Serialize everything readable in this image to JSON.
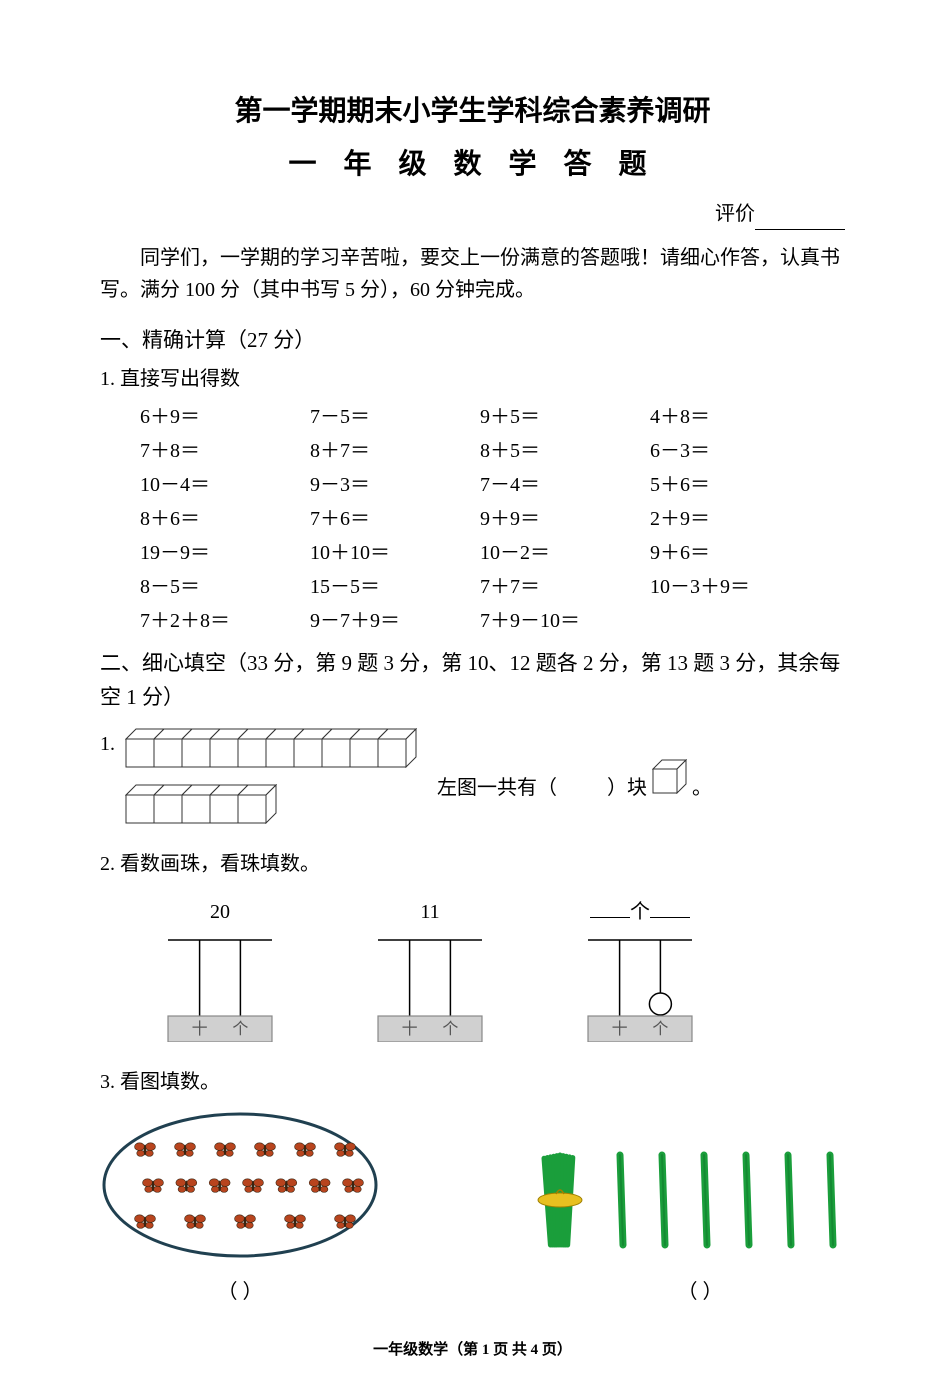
{
  "title_main": "第一学期期末小学生学科综合素养调研",
  "title_sub": "一 年 级 数 学 答 题",
  "eval_label": "评价",
  "intro": "同学们，一学期的学习辛苦啦，要交上一份满意的答题哦！请细心作答，认真书写。满分 100 分（其中书写 5 分），60 分钟完成。",
  "section1_head": "一、精确计算（27 分）",
  "section1_sub": "1.  直接写出得数",
  "calc_rows": [
    [
      "6＋9＝",
      "7－5＝",
      "9＋5＝",
      "4＋8＝"
    ],
    [
      "7＋8＝",
      "8＋7＝",
      "8＋5＝",
      "6－3＝"
    ],
    [
      "10－4＝",
      "9－3＝",
      "7－4＝",
      "5＋6＝"
    ],
    [
      "8＋6＝",
      "7＋6＝",
      "9＋9＝",
      "2＋9＝"
    ],
    [
      "19－9＝",
      "10＋10＝",
      "10－2＝",
      "9＋6＝"
    ],
    [
      "8－5＝",
      "15－5＝",
      "7＋7＝",
      "10－3＋9＝"
    ],
    [
      "7＋2＋8＝",
      "9－7＋9＝",
      "7＋9－10＝",
      ""
    ]
  ],
  "section2_head": "二、细心填空（33 分，第 9 题 3 分，第 10、12 题各 2 分，第 13 题 3 分，其余每空 1 分）",
  "q1_num": "1.",
  "q1_text_prefix": "左图一共有（",
  "q1_text_suffix": "）块",
  "q1_text_end": "。",
  "q1_top_cubes": 10,
  "q1_bottom_cubes": 5,
  "q2_num": "2.",
  "q2_text": "看数画珠，看珠填数。",
  "abacus": [
    {
      "label": "20",
      "rods": [
        "十",
        "个"
      ],
      "bead_on": null
    },
    {
      "label": "11",
      "rods": [
        "十",
        "个"
      ],
      "bead_on": null
    },
    {
      "label_prefix": "",
      "label_mid": "个",
      "label_blank": true,
      "rods": [
        "十",
        "个"
      ],
      "bead_on": 1
    }
  ],
  "q3_num": "3.",
  "q3_text": "看图填数。",
  "q3_left_paren": "（        ）",
  "q3_right_paren": "（        ）",
  "butterfly_count": 18,
  "bundle_sticks": 10,
  "loose_sticks": 6,
  "footer": "一年级数学（第 1 页 共 4 页）",
  "colors": {
    "text": "#000000",
    "bg": "#ffffff",
    "cube_fill": "#ffffff",
    "cube_stroke": "#333333",
    "abacus_base_fill": "#d0d0d0",
    "abacus_base_stroke": "#888888",
    "abacus_rod": "#000000",
    "stick_green": "#1a9e3b",
    "stick_dark": "#0d6b26",
    "bundle_tie": "#e8c020",
    "butterfly_wing": "#b8441e",
    "butterfly_dark": "#3a2410",
    "oval_stroke": "#204050"
  }
}
